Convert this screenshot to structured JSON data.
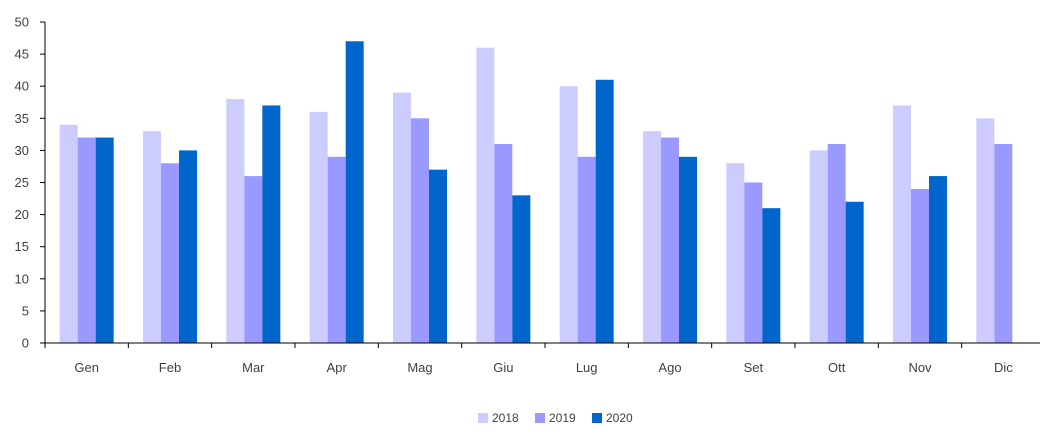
{
  "chart_data": {
    "type": "bar",
    "categories": [
      "Gen",
      "Feb",
      "Mar",
      "Apr",
      "Mag",
      "Giu",
      "Lug",
      "Ago",
      "Set",
      "Ott",
      "Nov",
      "Dic"
    ],
    "series": [
      {
        "name": "2018",
        "color": "#ccccff",
        "values": [
          34,
          33,
          38,
          36,
          39,
          46,
          40,
          33,
          28,
          30,
          37,
          35
        ]
      },
      {
        "name": "2019",
        "color": "#9999ff",
        "values": [
          32,
          28,
          26,
          29,
          35,
          31,
          29,
          32,
          25,
          31,
          24,
          31
        ]
      },
      {
        "name": "2020",
        "color": "#0066cc",
        "values": [
          32,
          30,
          37,
          47,
          27,
          23,
          41,
          29,
          21,
          22,
          26,
          null
        ]
      }
    ],
    "yticks": [
      "0",
      "5",
      "10",
      "15",
      "20",
      "25",
      "30",
      "35",
      "40",
      "45",
      "50"
    ],
    "ylim": [
      0,
      50
    ],
    "title": "",
    "xlabel": "",
    "ylabel": "",
    "grid": false,
    "legend_position": "bottom-center"
  }
}
